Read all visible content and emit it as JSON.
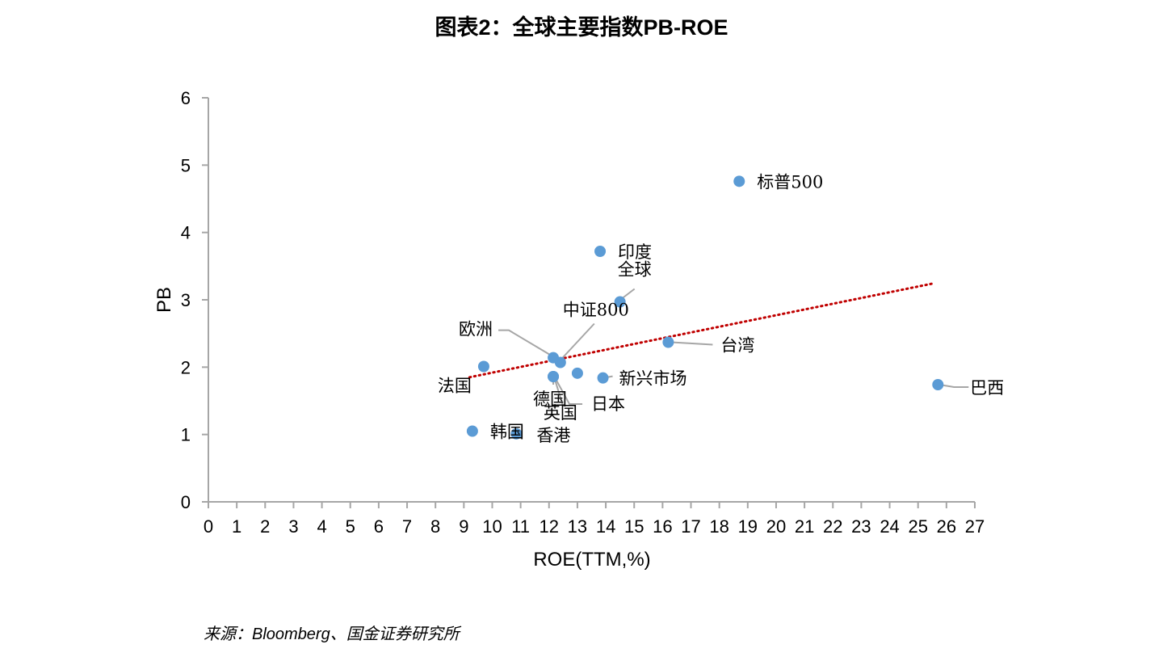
{
  "title": "图表2：全球主要指数PB-ROE",
  "source": "来源：Bloomberg、国金证券研究所",
  "colors": {
    "point": "#5b9bd5",
    "trend": "#c00000",
    "axis": "#a6a6a6",
    "leader": "#a6a6a6"
  },
  "chart_data": {
    "type": "scatter",
    "title": "图表2：全球主要指数PB-ROE",
    "xlabel": "ROE(TTM,%)",
    "ylabel": "PB",
    "xlim": [
      0,
      27
    ],
    "ylim": [
      0,
      6
    ],
    "xticks": [
      "0",
      "1",
      "2",
      "3",
      "4",
      "5",
      "6",
      "7",
      "8",
      "9",
      "10",
      "11",
      "12",
      "13",
      "14",
      "15",
      "16",
      "17",
      "18",
      "19",
      "20",
      "21",
      "22",
      "23",
      "24",
      "25",
      "26",
      "27"
    ],
    "yticks": [
      "0",
      "1",
      "2",
      "3",
      "4",
      "5",
      "6"
    ],
    "grid": false,
    "legend": "none",
    "trendline": {
      "style": "dotted",
      "x": [
        9.2,
        25.5
      ],
      "y": [
        1.85,
        3.24
      ]
    },
    "points": [
      {
        "label": "标普500",
        "x": 18.7,
        "y": 4.76
      },
      {
        "label": "印度",
        "x": 13.8,
        "y": 3.72
      },
      {
        "label": "全球",
        "x": 14.5,
        "y": 2.97
      },
      {
        "label": "中证800",
        "x": 12.4,
        "y": 2.07
      },
      {
        "label": "欧洲",
        "x": 12.15,
        "y": 2.14
      },
      {
        "label": "台湾",
        "x": 16.2,
        "y": 2.37
      },
      {
        "label": "法国",
        "x": 9.7,
        "y": 2.01
      },
      {
        "label": "新兴市场",
        "x": 13.9,
        "y": 1.84
      },
      {
        "label": "德国",
        "x": 12.15,
        "y": 1.86
      },
      {
        "label": "英国",
        "x": 13.0,
        "y": 1.91
      },
      {
        "label": "日本",
        "x": 12.15,
        "y": 1.86
      },
      {
        "label": "巴西",
        "x": 25.7,
        "y": 1.74
      },
      {
        "label": "韩国",
        "x": 9.3,
        "y": 1.05
      },
      {
        "label": "香港",
        "x": 10.85,
        "y": 1.01
      }
    ]
  }
}
